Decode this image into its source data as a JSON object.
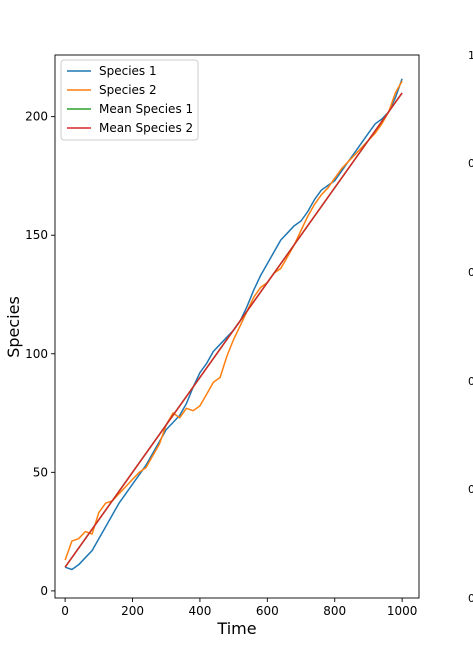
{
  "chart_data": [
    {
      "type": "line",
      "title": "",
      "xlabel": "Time",
      "ylabel": "Species",
      "xlim": [
        -30,
        1050
      ],
      "ylim": [
        -3,
        226
      ],
      "x_ticks": [
        0,
        200,
        400,
        600,
        800,
        1000
      ],
      "y_ticks": [
        0,
        50,
        100,
        150,
        200
      ],
      "x_tick_labels": [
        "0",
        "200",
        "400",
        "600",
        "800",
        "1000"
      ],
      "y_tick_labels": [
        "0",
        "50",
        "100",
        "150",
        "200"
      ],
      "grid": false,
      "legend_position": "upper-left",
      "series": [
        {
          "name": "Species 1",
          "color": "#1f77b4",
          "x": [
            0,
            20,
            40,
            60,
            80,
            100,
            120,
            140,
            160,
            180,
            200,
            220,
            240,
            260,
            280,
            300,
            320,
            340,
            360,
            380,
            400,
            420,
            440,
            460,
            480,
            500,
            520,
            540,
            560,
            580,
            600,
            620,
            640,
            660,
            680,
            700,
            720,
            740,
            760,
            780,
            800,
            820,
            840,
            860,
            880,
            900,
            920,
            940,
            960,
            980,
            1000
          ],
          "y": [
            10,
            9,
            11,
            14,
            17,
            22,
            27,
            32,
            37,
            41,
            45,
            49,
            53,
            58,
            63,
            68,
            71,
            74,
            79,
            86,
            92,
            96,
            101,
            104,
            107,
            110,
            114,
            120,
            127,
            133,
            138,
            143,
            148,
            151,
            154,
            156,
            160,
            165,
            169,
            171,
            173,
            177,
            181,
            185,
            189,
            193,
            197,
            199,
            202,
            208,
            216
          ]
        },
        {
          "name": "Species 2",
          "color": "#ff7f0e",
          "x": [
            0,
            20,
            40,
            60,
            80,
            100,
            120,
            140,
            160,
            180,
            200,
            220,
            240,
            260,
            280,
            300,
            320,
            340,
            360,
            380,
            400,
            420,
            440,
            460,
            480,
            500,
            520,
            540,
            560,
            580,
            600,
            620,
            640,
            660,
            680,
            700,
            720,
            740,
            760,
            780,
            800,
            820,
            840,
            860,
            880,
            900,
            920,
            940,
            960,
            980,
            1000
          ],
          "y": [
            13,
            21,
            22,
            25,
            24,
            33,
            37,
            38,
            41,
            44,
            47,
            50,
            52,
            57,
            62,
            70,
            75,
            73,
            77,
            76,
            78,
            83,
            88,
            90,
            99,
            106,
            112,
            118,
            124,
            128,
            130,
            134,
            136,
            141,
            146,
            152,
            158,
            163,
            167,
            170,
            174,
            178,
            181,
            184,
            187,
            190,
            193,
            197,
            202,
            210,
            215
          ]
        },
        {
          "name": "Mean Species 1",
          "color": "#2ca02c",
          "x": [
            0,
            1000
          ],
          "y": [
            10,
            210
          ]
        },
        {
          "name": "Mean Species 2",
          "color": "#d62728",
          "x": [
            0,
            1000
          ],
          "y": [
            10,
            210
          ]
        }
      ]
    },
    {
      "type": "line",
      "title": "",
      "xlabel": "",
      "ylabel": "",
      "y_tick_labels": [
        "0",
        "0",
        "0",
        "0",
        "0",
        "1"
      ],
      "grid": false,
      "series": []
    }
  ]
}
